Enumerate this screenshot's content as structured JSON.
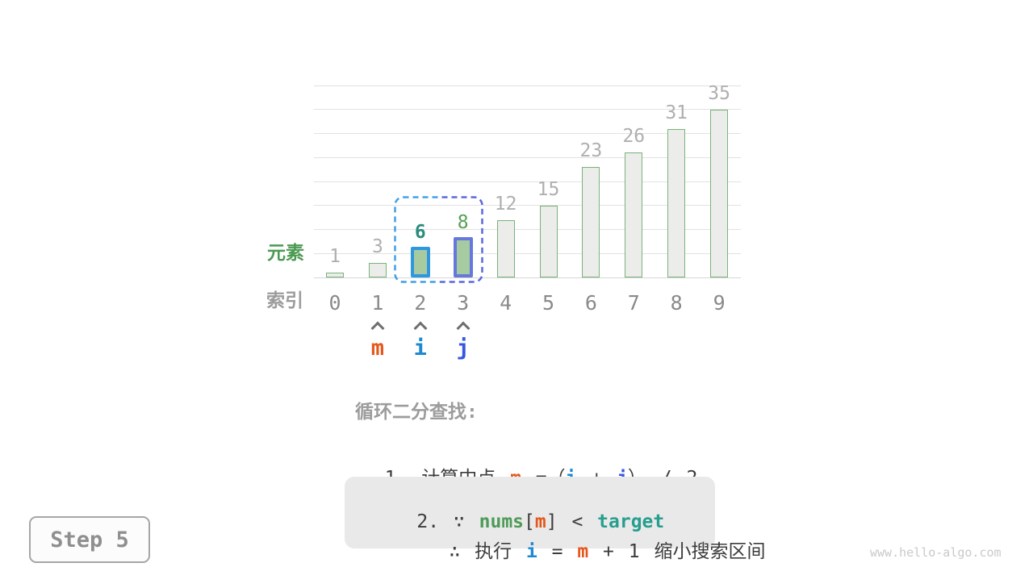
{
  "chart_data": {
    "type": "bar",
    "title": "",
    "xlabel": "索引",
    "ylabel": "元素",
    "categories": [
      "0",
      "1",
      "2",
      "3",
      "4",
      "5",
      "6",
      "7",
      "8",
      "9"
    ],
    "values": [
      1,
      3,
      6,
      8,
      12,
      15,
      23,
      26,
      31,
      35
    ],
    "ylim": [
      0,
      40
    ],
    "grid_step": 5,
    "grid": true,
    "legend_position": "none",
    "highlighted_indices": [
      2,
      3
    ],
    "search_range_indices": [
      2,
      3
    ]
  },
  "axis": {
    "y_label": "元素",
    "x_label": "索引"
  },
  "pointers": [
    {
      "label": "m",
      "index": 1,
      "color": "#E4571D"
    },
    {
      "label": "i",
      "index": 2,
      "color": "#1E88D2"
    },
    {
      "label": "j",
      "index": 3,
      "color": "#3657E0"
    }
  ],
  "explain": {
    "heading": "循环二分查找:",
    "step1": {
      "prefix": "1. 计算中点 ",
      "m": "m",
      "s1": " =（",
      "i": "i",
      "s2": " + ",
      "j": "j",
      "s3": "） / 2"
    },
    "step2a": {
      "prefix": "2. ∵ ",
      "nums": "nums",
      "b1": "[",
      "m": "m",
      "b2": "]",
      "cmp": " < ",
      "target": "target"
    },
    "step2b": {
      "prefix": "∴ 执行 ",
      "i": "i",
      "s1": " = ",
      "m": "m",
      "s2": " + 1 缩小搜索区间"
    }
  },
  "badge": {
    "label": "Step 5"
  },
  "watermark": "www.hello-algo.com",
  "colors": {
    "bar_fill": "#ECECEB",
    "bar_border": "#79B379",
    "highlight_fill": "#A7CBA0",
    "highlight_border_2": "#2F97DF",
    "highlight_border_3": "#6678DB",
    "value_label": "#AFAFAF",
    "value_label_2": "#2B8C7D",
    "value_label_3": "#55A055",
    "index_label": "#8A8A8A",
    "caret": "#6F6F6F",
    "gridline": "#E2E2E2",
    "baseline": "#D6D6D6",
    "region_left": "#3FA0E8",
    "region_right": "#5868DE",
    "m": "#E4571D",
    "i": "#1E88D2",
    "j": "#3657E0",
    "nums": "#4E9B57",
    "target": "#279E8E",
    "text": "#3C3C3C",
    "heading": "#9C9C9C",
    "y_label": "#4C9A52",
    "x_label": "#9C9C9C"
  }
}
